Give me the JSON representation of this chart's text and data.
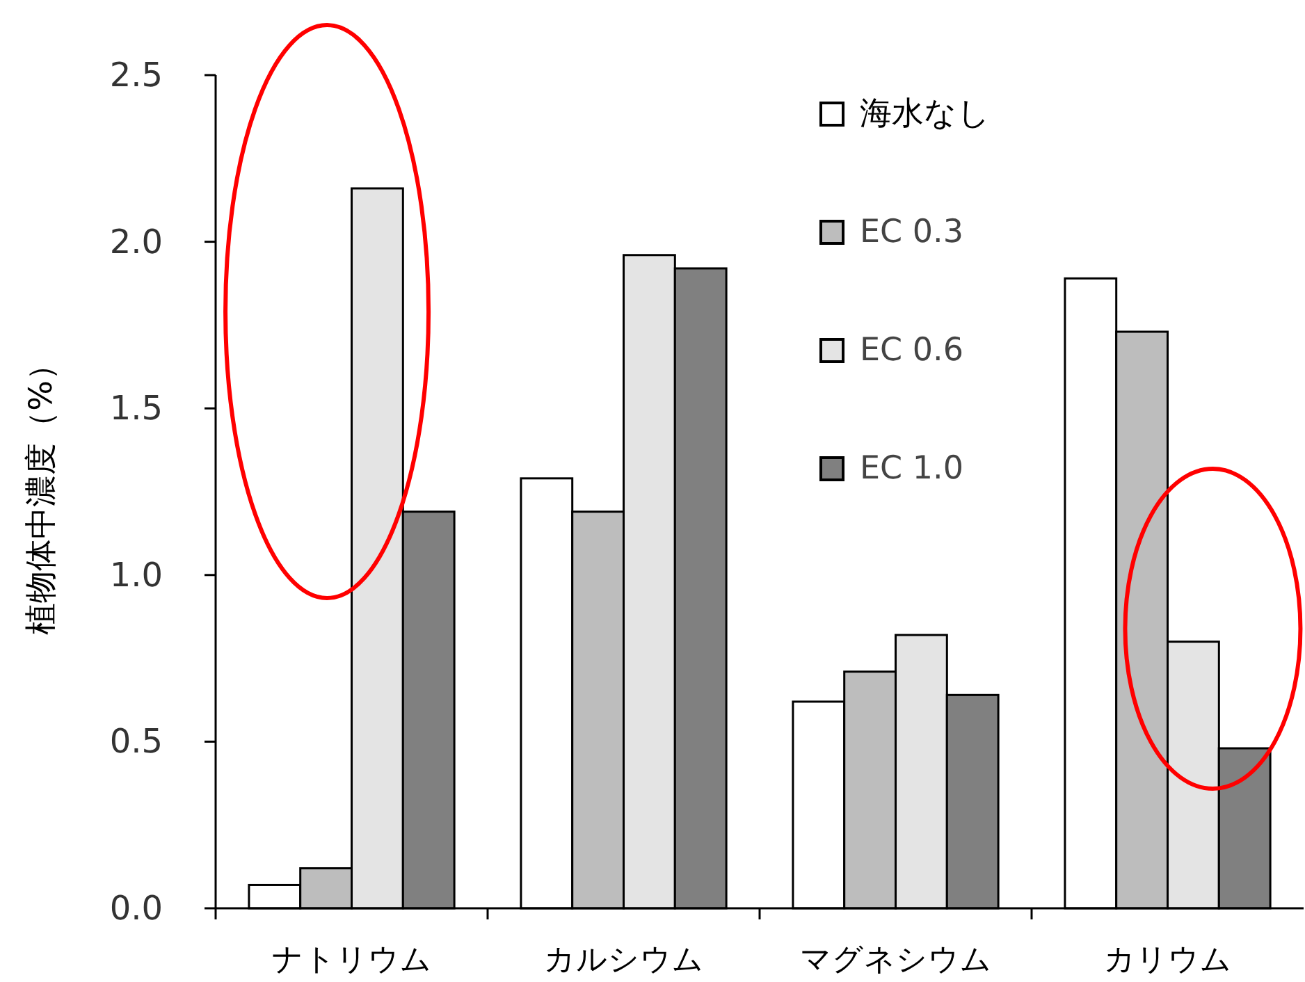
{
  "chart_data": {
    "type": "bar",
    "ylabel": "植物体中濃度（%）",
    "categories": [
      "ナトリウム",
      "カルシウム",
      "マグネシウム",
      "カリウム"
    ],
    "series": [
      {
        "name": "海水なし",
        "color": "#ffffff",
        "values": [
          0.07,
          1.29,
          0.62,
          1.89
        ]
      },
      {
        "name": "EC 0.3",
        "color": "#bdbdbd",
        "values": [
          0.12,
          1.19,
          0.71,
          1.73
        ]
      },
      {
        "name": "EC 0.6",
        "color": "#e4e4e4",
        "values": [
          2.16,
          1.96,
          0.82,
          0.8
        ]
      },
      {
        "name": "EC 1.0",
        "color": "#808080",
        "values": [
          1.19,
          1.92,
          0.64,
          0.48
        ]
      }
    ],
    "ylim": [
      0,
      2.5
    ],
    "yticks": [
      {
        "value": 0,
        "label": "0.0"
      },
      0.5,
      {
        "value": 1,
        "label": "1.0"
      },
      1.5,
      {
        "value": 2,
        "label": "2.0"
      },
      2.5
    ],
    "legend": "top right"
  }
}
